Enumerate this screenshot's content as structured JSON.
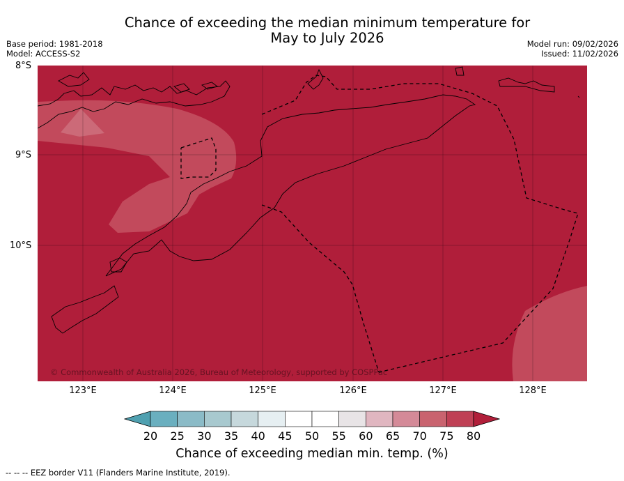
{
  "title": {
    "line1": "Chance of exceeding the median minimum temperature for",
    "line2": "May to July 2026"
  },
  "meta_left": {
    "base_period": "Base period: 1981-2018",
    "model": "Model: ACCESS-S2"
  },
  "meta_right": {
    "model_run": "Model run: 09/02/2026",
    "issued": "Issued: 11/02/2026"
  },
  "latitude_labels": [
    "8°S",
    "9°S",
    "10°S"
  ],
  "longitude_labels": [
    "123°E",
    "124°E",
    "125°E",
    "126°E",
    "127°E",
    "128°E"
  ],
  "copyright": "© Commonwealth of Australia 2026, Bureau of Meteorology, supported by COSPPac",
  "colorbar": {
    "ticks": [
      "20",
      "25",
      "30",
      "35",
      "40",
      "45",
      "50",
      "55",
      "60",
      "65",
      "70",
      "75",
      "80"
    ],
    "colors": [
      "#4fa0b0",
      "#6aafbf",
      "#8bbbc7",
      "#a8c9cf",
      "#c6d8dc",
      "#e6eff2",
      "#ffffff",
      "#ffffff",
      "#e8e4e6",
      "#e0b6c0",
      "#d48a98",
      "#c9636f",
      "#bf4055",
      "#b11f3a"
    ],
    "label": "Chance of exceeding median min. temp. (%)"
  },
  "footer": "--  --  -- EEZ border V11 (Flanders Marine Institute, 2019).",
  "colors": {
    "ocean": "#b01e3a",
    "band_75": "#c24a5c",
    "band_70": "#cc6a78"
  }
}
